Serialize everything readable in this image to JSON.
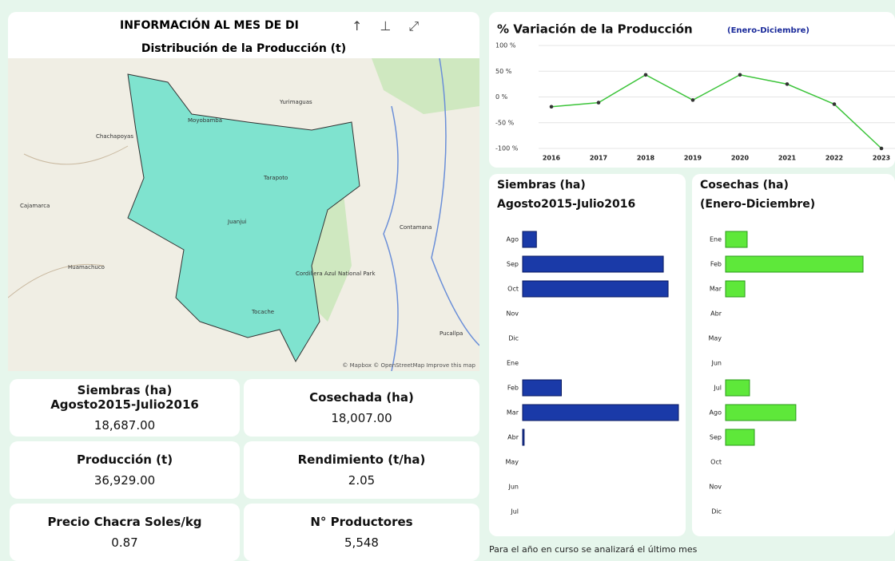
{
  "header": {
    "title": "INFORMACIÓN AL MES DE DI",
    "map_title": "Distribución de la Producción (t)"
  },
  "map": {
    "labels": [
      "Moyobamba",
      "Tarapoto",
      "Juanjui",
      "Tocache",
      "Chachapoyas",
      "Cajamarca",
      "Yurimaguas",
      "Contamana",
      "Pucallpa",
      "Huamachuco",
      "Cordillera Azul National Park"
    ],
    "attribution": "© Mapbox © OpenStreetMap Improve this map"
  },
  "kpis": [
    {
      "label": "Siembras (ha) Agosto2015-Julio2016",
      "value": "18,687.00"
    },
    {
      "label": "Cosechada (ha)",
      "value": "18,007.00"
    },
    {
      "label": "Producción (t)",
      "value": "36,929.00"
    },
    {
      "label": "Rendimiento (t/ha)",
      "value": "2.05"
    },
    {
      "label": "Precio Chacra Soles/kg",
      "value": "0.87"
    },
    {
      "label": "N° Productores",
      "value": "5,548"
    }
  ],
  "chart_data": [
    {
      "type": "line",
      "title": "% Variación de la Producción",
      "subtitle": "(Enero-Diciembre)",
      "categories": [
        "2016",
        "2017",
        "2018",
        "2019",
        "2020",
        "2021",
        "2022",
        "2023"
      ],
      "values": [
        -19,
        -11,
        43,
        -6,
        43,
        25,
        -14,
        -100
      ],
      "color": "#3cc43a",
      "ylim": [
        -100,
        100
      ],
      "yticks": [
        {
          "value": -100,
          "label": "-100 %"
        },
        {
          "value": -50,
          "label": "-50 %"
        },
        {
          "value": 0,
          "label": "0 %"
        },
        {
          "value": 50,
          "label": "50 %"
        },
        {
          "value": 100,
          "label": "100 %"
        }
      ],
      "grid": true
    },
    {
      "type": "hbar",
      "title": "Siembras (ha)",
      "subtitle": "Agosto2015-Julio2016",
      "categories": [
        "Ago",
        "Sep",
        "Oct",
        "Nov",
        "Dic",
        "Ene",
        "Feb",
        "Mar",
        "Abr",
        "May",
        "Jun",
        "Jul"
      ],
      "values": [
        520,
        5300,
        5480,
        0,
        0,
        0,
        1460,
        5870,
        57,
        0,
        0,
        0
      ],
      "color": "#1a3aa8"
    },
    {
      "type": "hbar",
      "title": "Cosechas (ha)",
      "subtitle": "(Enero-Diciembre)",
      "categories": [
        "Ene",
        "Feb",
        "Mar",
        "Abr",
        "May",
        "Jun",
        "Jul",
        "Ago",
        "Sep",
        "Oct",
        "Nov",
        "Dic"
      ],
      "values": [
        1290,
        8220,
        1150,
        0,
        0,
        0,
        1430,
        4200,
        1720,
        0,
        0,
        0
      ],
      "color": "#5ee83a"
    }
  ],
  "footer": "Para el año en curso se analizará el último mes"
}
